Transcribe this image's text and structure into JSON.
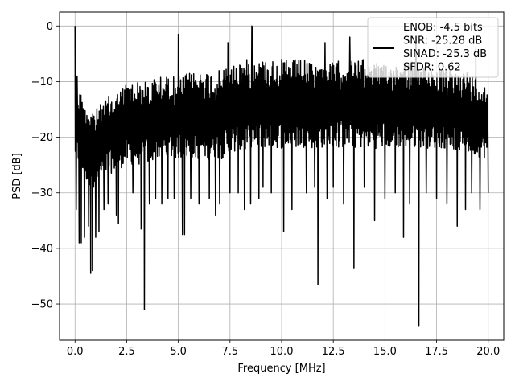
{
  "chart_data": {
    "type": "line",
    "title": "",
    "xlabel": "Frequency [MHz]",
    "ylabel": "PSD [dB]",
    "xlim": [
      -0.75,
      20.75
    ],
    "ylim": [
      -56.5,
      2.5
    ],
    "xticks": [
      0.0,
      2.5,
      5.0,
      7.5,
      10.0,
      12.5,
      15.0,
      17.5,
      20.0
    ],
    "xtick_labels": [
      "0.0",
      "2.5",
      "5.0",
      "7.5",
      "10.0",
      "12.5",
      "15.0",
      "17.5",
      "20.0"
    ],
    "yticks": [
      0,
      -10,
      -20,
      -30,
      -40,
      -50
    ],
    "ytick_labels": [
      "0",
      "−10",
      "−20",
      "−30",
      "−40",
      "−50"
    ],
    "grid": true,
    "legend_position": "top-right",
    "legend_lines": [
      "ENOB: -4.5 bits",
      "SNR: -25.28 dB",
      "SINAD: -25.3 dB",
      "SFDR: 0.62"
    ],
    "line_color": "#000000",
    "series": [
      {
        "name": "ENOB: -4.5 bits\nSNR: -25.28 dB\nSINAD: -25.3 dB\nSFDR: 0.62",
        "band": {
          "x": [
            0.0,
            0.3,
            0.6,
            1.0,
            1.5,
            2.0,
            2.5,
            3.0,
            3.5,
            4.0,
            5.0,
            6.0,
            7.0,
            8.0,
            9.0,
            10.0,
            11.0,
            12.0,
            13.0,
            14.0,
            15.0,
            16.0,
            17.0,
            18.0,
            19.0,
            20.0
          ],
          "upper": [
            -9,
            -12,
            -14,
            -15,
            -13,
            -12,
            -10,
            -10,
            -10,
            -9,
            -9,
            -8,
            -8,
            -6,
            -6,
            -6,
            -6,
            -7,
            -6,
            -6,
            -7,
            -6,
            -7,
            -8,
            -8,
            -11
          ],
          "lower": [
            -24,
            -27,
            -29,
            -29,
            -27,
            -26,
            -25,
            -25,
            -25,
            -24,
            -24,
            -24,
            -24,
            -23,
            -22,
            -22,
            -22,
            -22,
            -22,
            -22,
            -22,
            -22,
            -22,
            -22,
            -23,
            -24
          ]
        },
        "peaks": [
          [
            0.0,
            0.0
          ],
          [
            0.1,
            -9.0
          ]
        ],
        "dips": [
          [
            0.05,
            -33
          ],
          [
            0.2,
            -39
          ],
          [
            0.3,
            -39
          ],
          [
            0.45,
            -38
          ],
          [
            0.65,
            -36
          ],
          [
            0.75,
            -44.5
          ],
          [
            0.85,
            -44
          ],
          [
            1.0,
            -38
          ],
          [
            1.15,
            -37
          ],
          [
            1.4,
            -33
          ],
          [
            1.6,
            -32
          ],
          [
            2.0,
            -34
          ],
          [
            2.1,
            -35.5
          ],
          [
            2.8,
            -30
          ],
          [
            3.2,
            -36.5
          ],
          [
            3.35,
            -51
          ],
          [
            3.6,
            -32
          ],
          [
            3.9,
            -31
          ],
          [
            4.2,
            -32
          ],
          [
            4.5,
            -31
          ],
          [
            4.8,
            -31
          ],
          [
            5.2,
            -37.5
          ],
          [
            5.3,
            -37.5
          ],
          [
            5.6,
            -31
          ],
          [
            6.0,
            -32
          ],
          [
            6.5,
            -31
          ],
          [
            6.8,
            -34
          ],
          [
            7.0,
            -32
          ],
          [
            7.5,
            -30
          ],
          [
            7.9,
            -30
          ],
          [
            8.2,
            -33
          ],
          [
            8.5,
            -32
          ],
          [
            8.9,
            -31
          ],
          [
            9.1,
            -29
          ],
          [
            9.5,
            -30
          ],
          [
            10.1,
            -37
          ],
          [
            10.5,
            -33
          ],
          [
            11.2,
            -30
          ],
          [
            11.6,
            -29
          ],
          [
            11.75,
            -46.5
          ],
          [
            12.2,
            -31
          ],
          [
            12.5,
            -29
          ],
          [
            13.0,
            -32
          ],
          [
            13.5,
            -43.5
          ],
          [
            14.0,
            -29
          ],
          [
            14.5,
            -35
          ],
          [
            15.0,
            -31
          ],
          [
            15.5,
            -30
          ],
          [
            15.9,
            -38
          ],
          [
            16.2,
            -32
          ],
          [
            16.65,
            -54
          ],
          [
            17.0,
            -30
          ],
          [
            17.5,
            -31
          ],
          [
            18.0,
            -32
          ],
          [
            18.5,
            -36
          ],
          [
            18.9,
            -33
          ],
          [
            19.2,
            -30
          ],
          [
            19.6,
            -33
          ],
          [
            20.0,
            -30
          ]
        ],
        "spikes": [
          [
            5.0,
            -1.5
          ],
          [
            8.55,
            0.0
          ],
          [
            8.6,
            -0.2
          ],
          [
            13.3,
            -2
          ],
          [
            16.5,
            -2
          ],
          [
            19.4,
            -4
          ],
          [
            12.1,
            -3
          ],
          [
            7.4,
            -3
          ]
        ]
      }
    ]
  }
}
